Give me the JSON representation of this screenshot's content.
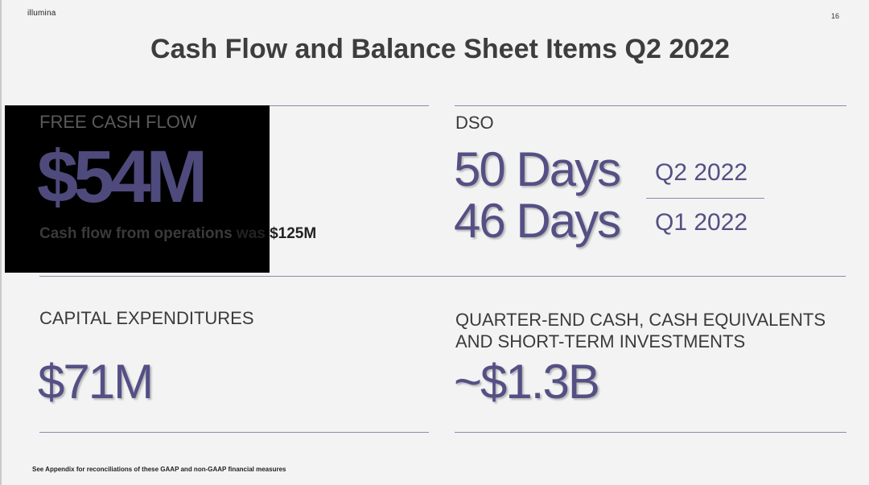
{
  "header": {
    "logo": "illumina",
    "page_number": "16"
  },
  "title": "Cash Flow and Balance Sheet Items Q2 2022",
  "free_cash_flow": {
    "label": "FREE CASH FLOW",
    "value": "$54M",
    "sub_part1": "Cash flow from operations",
    "sub_part2": " was $125M"
  },
  "dso": {
    "label": "DSO",
    "current_value": "50 Days",
    "current_period": "Q2 2022",
    "prior_value": "46 Days",
    "prior_period": "Q1 2022"
  },
  "capex": {
    "label": "CAPITAL EXPENDITURES",
    "value": "$71M"
  },
  "cash": {
    "label_line1": "QUARTER-END CASH, CASH EQUIVALENTS",
    "label_line2": "AND SHORT-TERM INVESTMENTS",
    "value": "~$1.3B"
  },
  "footnote": "See Appendix for reconciliations of these GAAP and non-GAAP financial measures",
  "colors": {
    "accent": "#545085",
    "rule": "#8e88ae",
    "background": "#f3f3f3"
  }
}
